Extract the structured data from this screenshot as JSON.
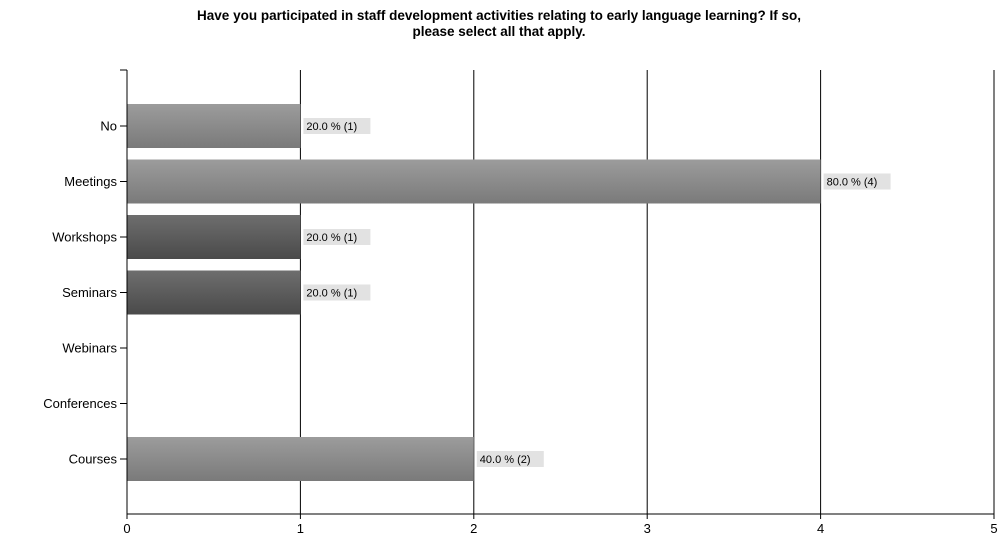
{
  "chart_data": {
    "type": "bar",
    "orientation": "horizontal",
    "title_line1": "Have you  participated in staff development activities relating to early language learning? If so,",
    "title_line2": "please select  all that apply.",
    "xlabel": "",
    "ylabel": "",
    "categories": [
      "No",
      "Meetings",
      "Workshops",
      "Seminars",
      "Webinars",
      "Conferences",
      "Courses"
    ],
    "values": [
      1,
      4,
      1,
      1,
      0,
      0,
      2
    ],
    "data_labels": [
      "20.0 % (1)",
      "80.0 % (4)",
      "20.0 % (1)",
      "20.0 % (1)",
      "",
      "",
      "40.0 % (2)"
    ],
    "xlim": [
      0,
      5
    ],
    "x_ticks": [
      "0",
      "1",
      "2",
      "3",
      "4",
      "5"
    ],
    "grid": "vertical",
    "legend": "none",
    "colors": {
      "bar_light_top": "#9c9c9c",
      "bar_light_bottom": "#7a7a7a",
      "bar_dark_top": "#6e6e6e",
      "bar_dark_bottom": "#4a4a4a",
      "label_bg": "#e2e2e2",
      "axis": "#000000"
    }
  }
}
